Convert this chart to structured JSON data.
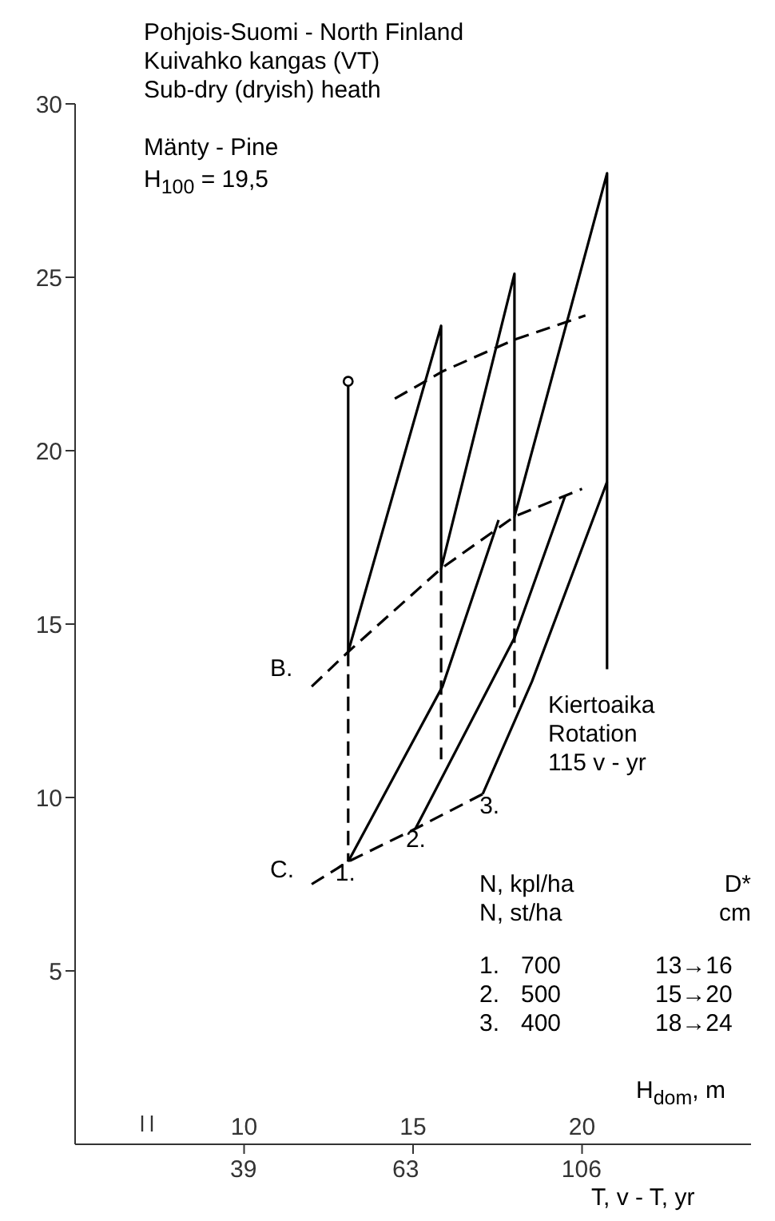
{
  "chart_data": {
    "type": "line",
    "title": "Pohjois-Suomi - North Finland",
    "subtitle": "Kuivahko kangas (VT)\nSub-dry (dryish) heath",
    "xlabel": "H$_{dom}$, m",
    "x2label": "T, v - T, yr",
    "xlim": [
      5,
      25
    ],
    "xticks": [
      10,
      15,
      20
    ],
    "x2lim": [
      23.7,
      175
    ],
    "x2ticks": [
      39,
      63,
      106
    ],
    "log": "x2",
    "ylim": [
      0,
      30
    ],
    "yticks": [
      5,
      10,
      15,
      20,
      25,
      30
    ],
    "series": [
      {
        "color": "#000000",
        "line_style": "solid",
        "x": [
          13.08,
          13.08
        ],
        "values": [
          22,
          14.2
        ]
      },
      {
        "type": "scatter",
        "color": "#000000",
        "marker": "circle",
        "x": [
          13.08
        ],
        "values": [
          22
        ]
      },
      {
        "color": "#000000",
        "line_style": "solid",
        "x": [
          13.08,
          15.83,
          15.83,
          18.0,
          18.0,
          20.74,
          20.74
        ],
        "values": [
          14.2,
          23.6,
          16.6,
          25.1,
          18.1,
          28.0,
          13.7
        ]
      },
      {
        "type": "line",
        "color": "#000000",
        "line_style": "dashed",
        "x": [
          12.0,
          13.08,
          15.83,
          18.0,
          20.0
        ],
        "values": [
          13.2,
          14.2,
          16.6,
          18.1,
          18.9
        ]
      },
      {
        "type": "line",
        "color": "#000000",
        "line_style": "dashed",
        "x": [
          14.46,
          15.9,
          18.0,
          20.1
        ],
        "values": [
          21.5,
          22.3,
          23.2,
          23.9
        ]
      },
      {
        "type": "line",
        "color": "#000000",
        "line_style": "dashed",
        "x": [
          12.0,
          13.08,
          15.07,
          17.06
        ],
        "values": [
          7.5,
          8.15,
          9.1,
          10.1
        ]
      },
      {
        "type": "line",
        "color": "#000000",
        "line_style": "dashed",
        "x": [
          13.08,
          13.08
        ],
        "values": [
          14.2,
          8.15
        ]
      },
      {
        "type": "line",
        "color": "#000000",
        "line_style": "dashed",
        "x": [
          15.83,
          15.83
        ],
        "values": [
          16.6,
          11.1
        ]
      },
      {
        "type": "line",
        "color": "#000000",
        "line_style": "dashed",
        "x": [
          18.0,
          18.0
        ],
        "values": [
          18.1,
          12.6
        ]
      },
      {
        "type": "line",
        "color": "#000000",
        "line_style": "solid",
        "x": [
          13.08,
          15.87,
          17.53
        ],
        "values": [
          8.15,
          13.2,
          18.0
        ]
      },
      {
        "type": "line",
        "color": "#000000",
        "line_style": "solid",
        "x": [
          15.07,
          18.0,
          19.5
        ],
        "values": [
          9.1,
          14.6,
          18.7
        ]
      },
      {
        "type": "line",
        "color": "#000000",
        "line_style": "solid",
        "x": [
          20.74,
          18.52,
          17.06
        ],
        "values": [
          19.1,
          13.35,
          10.1
        ]
      }
    ],
    "annotations": [
      "Mänty - Pine",
      "H$_{100}$ = 19,5",
      "Kiertoaika\nRotation\n115 v - yr",
      "N, kpl/ha\nN, st/ha",
      "D*\ncm",
      "1.\n2.\n3.",
      "700\n500\n400",
      "13→16\n15→20\n18→24",
      {
        "text": "B.",
        "x": 12.0,
        "y": 13.2
      },
      {
        "text": "C.",
        "x": 12.0,
        "y": 7.5
      },
      {
        "text": "1.",
        "x": 13.08,
        "y": 8.15
      },
      {
        "text": "2.",
        "x": 15.07,
        "y": 9.1
      },
      {
        "text": "3.",
        "x": 17.06,
        "y": 10.1
      }
    ]
  }
}
